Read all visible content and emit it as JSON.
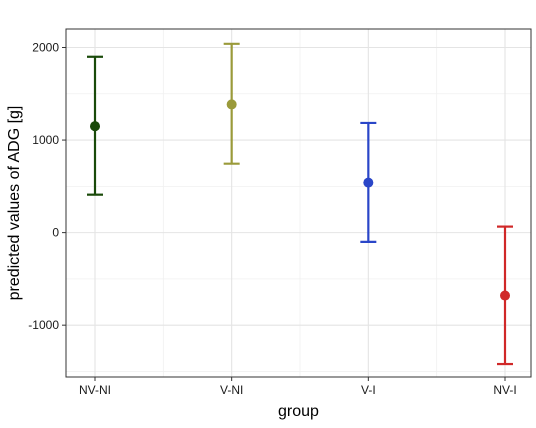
{
  "chart_data": {
    "type": "errorbar",
    "xlabel": "group",
    "ylabel": "predicted values of ADG [g]",
    "ylim": [
      -1560,
      2200
    ],
    "yticks": [
      2000,
      1000,
      0,
      -1000
    ],
    "ytick_labels": [
      "2000",
      "1000",
      "0",
      "-1000"
    ],
    "grid": true,
    "categories": [
      "NV-NI",
      "V-NI",
      "V-I",
      "NV-I"
    ],
    "points": [
      {
        "group": "NV-NI",
        "estimate": 1150,
        "lower": 410,
        "upper": 1900,
        "color": "#1a4a0a"
      },
      {
        "group": "V-NI",
        "estimate": 1385,
        "lower": 745,
        "upper": 2040,
        "color": "#9a9a3a"
      },
      {
        "group": "V-I",
        "estimate": 540,
        "lower": -100,
        "upper": 1185,
        "color": "#2a46c8"
      },
      {
        "group": "NV-I",
        "estimate": -680,
        "lower": -1420,
        "upper": 65,
        "color": "#d02828"
      }
    ]
  }
}
